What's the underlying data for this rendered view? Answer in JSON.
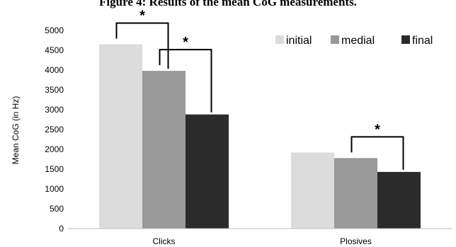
{
  "chart_data": {
    "type": "bar",
    "title": "Figure 4: Results of the mean CoG measurements.",
    "xlabel": "",
    "ylabel": "Mean CoG (in Hz)",
    "ylim": [
      0,
      5000
    ],
    "yticks": [
      0,
      500,
      1000,
      1500,
      2000,
      2500,
      3000,
      3500,
      4000,
      4500,
      5000
    ],
    "categories": [
      "Clicks",
      "Plosives"
    ],
    "series": [
      {
        "name": "initial",
        "color": "#dcdcdc",
        "values": [
          4650,
          1920
        ]
      },
      {
        "name": "medial",
        "color": "#999999",
        "values": [
          3980,
          1780
        ]
      },
      {
        "name": "final",
        "color": "#2b2b2b",
        "values": [
          2880,
          1430
        ]
      }
    ],
    "legend_position": "top-right",
    "grid": false,
    "significance": [
      {
        "category": 0,
        "from_series": 0,
        "to_series": 1,
        "label": "*"
      },
      {
        "category": 0,
        "from_series": 1,
        "to_series": 2,
        "label": "*"
      },
      {
        "category": 1,
        "from_series": 1,
        "to_series": 2,
        "label": "*"
      }
    ]
  }
}
